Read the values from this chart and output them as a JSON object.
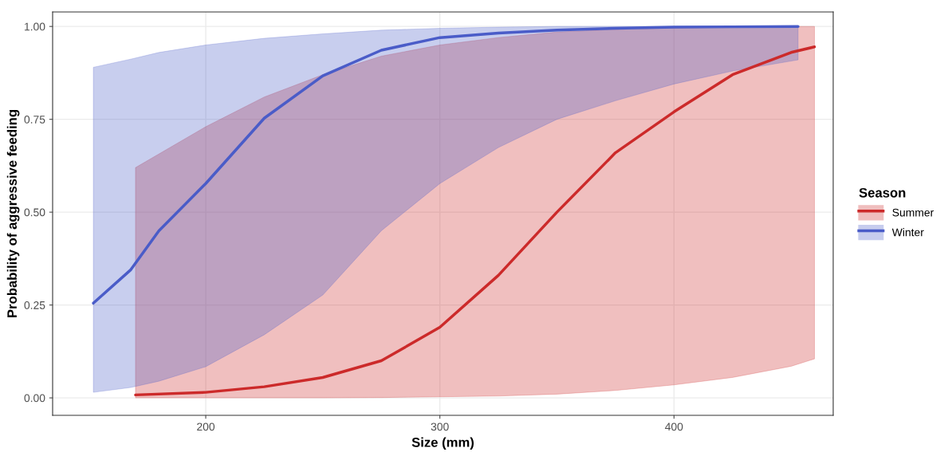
{
  "chart_data": {
    "type": "line",
    "xlabel": "Size (mm)",
    "ylabel": "Probability of aggressive feeding",
    "legend_title": "Season",
    "legend": "right",
    "grid": true,
    "xlim": [
      134.6,
      468
    ],
    "ylim": [
      -0.047,
      1.039
    ],
    "xticks": [
      200,
      300,
      400
    ],
    "yticks": [
      {
        "value": 0,
        "label": "0.00"
      },
      {
        "value": 0.25,
        "label": "0.25"
      },
      {
        "value": 0.5,
        "label": "0.50"
      },
      {
        "value": 0.75,
        "label": "0.75"
      },
      {
        "value": 1,
        "label": "1.00"
      }
    ],
    "series": [
      {
        "name": "Summer",
        "color": "#cc2a2a",
        "x": [
          170,
          200,
          225,
          250,
          275,
          300,
          325,
          350,
          375,
          400,
          425,
          450,
          460
        ],
        "values": [
          0.008,
          0.015,
          0.03,
          0.055,
          0.1,
          0.19,
          0.33,
          0.5,
          0.66,
          0.77,
          0.87,
          0.93,
          0.945
        ],
        "lower": [
          0.0,
          0.0,
          0.0,
          0.0,
          0.001,
          0.003,
          0.005,
          0.01,
          0.02,
          0.035,
          0.055,
          0.085,
          0.105
        ],
        "upper": [
          0.62,
          0.73,
          0.81,
          0.87,
          0.92,
          0.95,
          0.97,
          0.985,
          0.992,
          0.996,
          0.998,
          1.0,
          1.0
        ]
      },
      {
        "name": "Winter",
        "color": "#4a5cc8",
        "x": [
          152,
          168,
          180,
          200,
          225,
          250,
          275,
          300,
          325,
          350,
          375,
          400,
          425,
          453
        ],
        "values": [
          0.255,
          0.345,
          0.45,
          0.577,
          0.753,
          0.867,
          0.936,
          0.97,
          0.982,
          0.99,
          0.995,
          0.998,
          0.999,
          1.0
        ],
        "lower": [
          0.015,
          0.028,
          0.045,
          0.084,
          0.17,
          0.277,
          0.45,
          0.577,
          0.674,
          0.75,
          0.8,
          0.845,
          0.88,
          0.91
        ],
        "upper": [
          0.89,
          0.912,
          0.93,
          0.95,
          0.968,
          0.98,
          0.99,
          0.995,
          0.998,
          1.0,
          1.0,
          1.0,
          1.0,
          1.0
        ]
      }
    ]
  }
}
